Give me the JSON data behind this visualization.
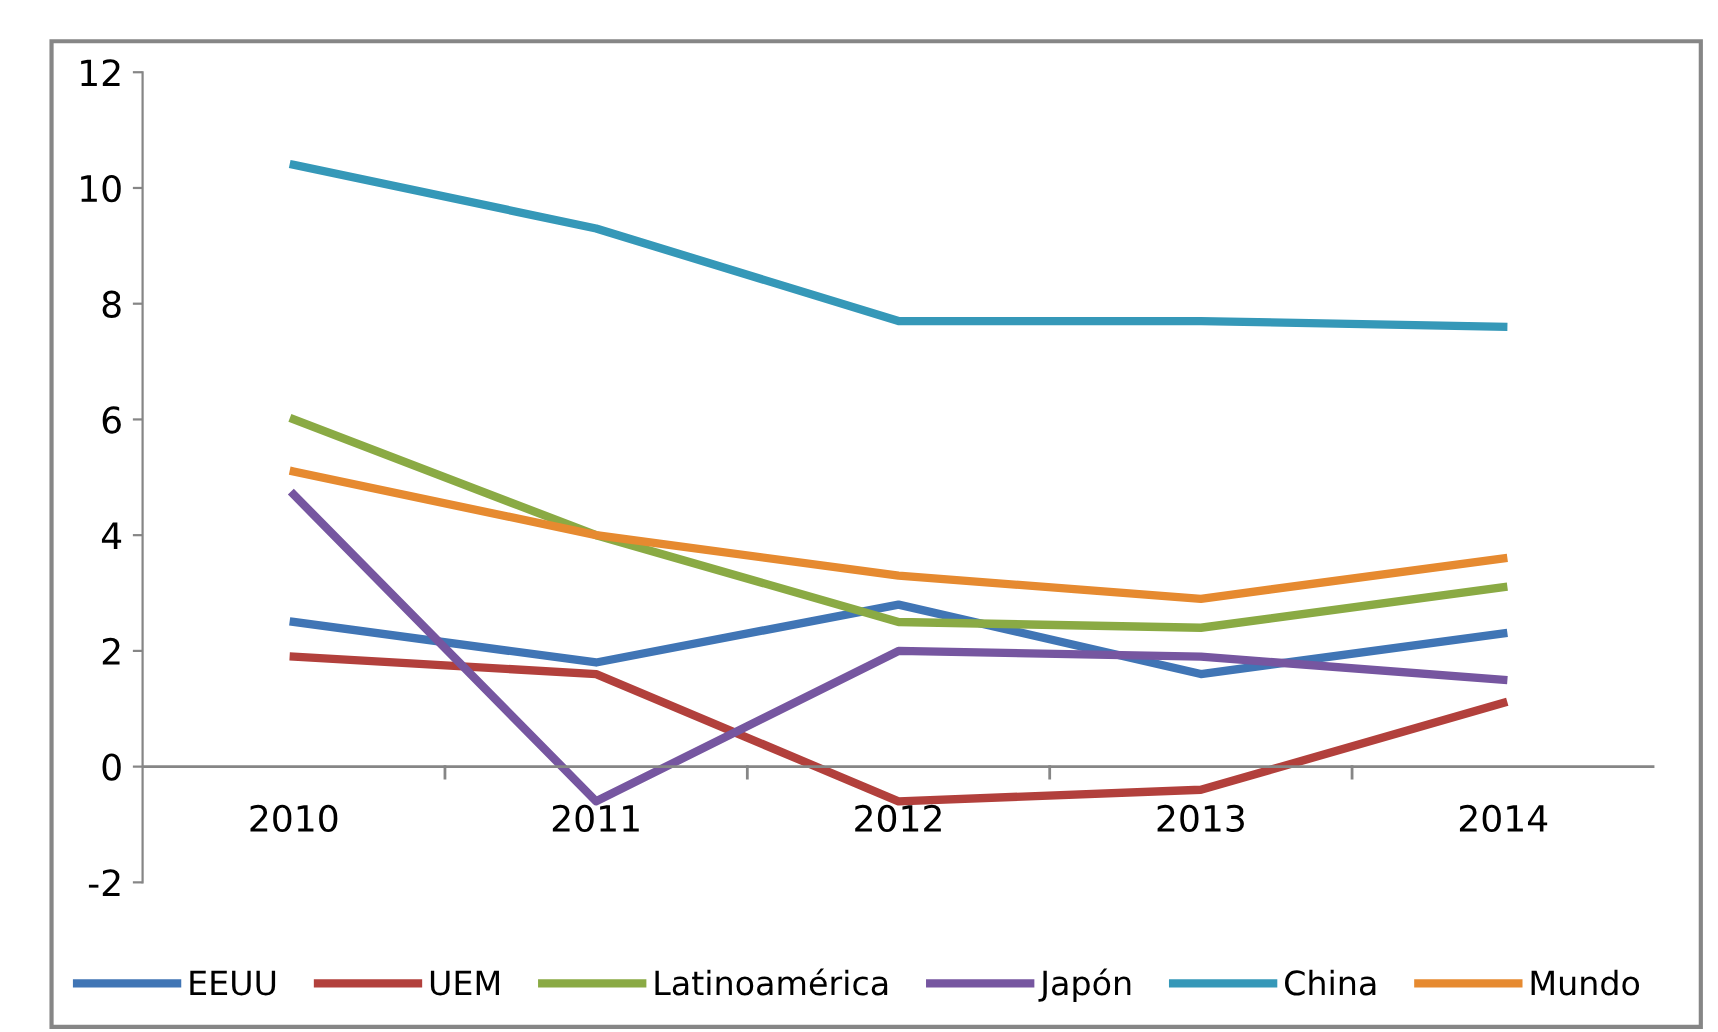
{
  "chart_data": {
    "type": "line",
    "categories": [
      "2010",
      "2011",
      "2012",
      "2013",
      "2014"
    ],
    "ylim": [
      -2,
      12
    ],
    "yticks": [
      -2,
      0,
      2,
      4,
      6,
      8,
      10,
      12
    ],
    "grid": false,
    "legend": "bottom",
    "marker": "none",
    "line_style": "solid",
    "series": [
      {
        "name": "EEUU",
        "color": "#4075b5",
        "values": [
          2.5,
          1.8,
          2.8,
          1.6,
          2.3
        ]
      },
      {
        "name": "UEM",
        "color": "#b2403c",
        "values": [
          1.9,
          1.6,
          -0.6,
          -0.4,
          1.1
        ]
      },
      {
        "name": "Latinoamérica",
        "color": "#8aaa44",
        "values": [
          6.0,
          4.0,
          2.5,
          2.4,
          3.1
        ]
      },
      {
        "name": "Japón",
        "color": "#7656a0",
        "values": [
          4.7,
          -0.6,
          2.0,
          1.9,
          1.5
        ]
      },
      {
        "name": "China",
        "color": "#3598b8",
        "values": [
          10.4,
          9.3,
          7.7,
          7.7,
          7.6
        ]
      },
      {
        "name": "Mundo",
        "color": "#e68a30",
        "values": [
          5.1,
          4.0,
          3.3,
          2.9,
          3.6
        ]
      }
    ]
  }
}
